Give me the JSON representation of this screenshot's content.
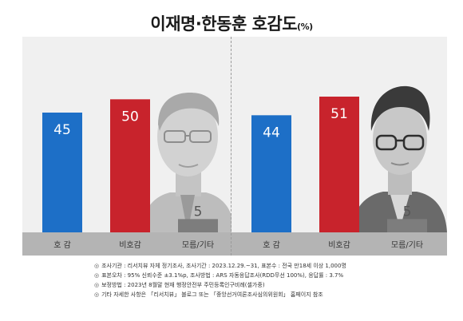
{
  "title": {
    "main": "이재명·한동훈 호감도",
    "unit": "(%)"
  },
  "chart_data": [
    {
      "type": "bar",
      "categories": [
        "호 감",
        "비호감",
        "모름/기타"
      ],
      "values": [
        45,
        50,
        5
      ],
      "colors": [
        "#1d6fc7",
        "#c8232c",
        "#7d7d7d"
      ],
      "ylim": [
        0,
        60
      ]
    },
    {
      "type": "bar",
      "categories": [
        "호 감",
        "비호감",
        "모름/기타"
      ],
      "values": [
        44,
        51,
        5
      ],
      "colors": [
        "#1d6fc7",
        "#c8232c",
        "#7d7d7d"
      ],
      "ylim": [
        0,
        60
      ]
    }
  ],
  "footer": {
    "lines": [
      "조사기관 : 리서치뷰 자체 정기조사, 조사기간 : 2023.12.29.~31, 표본수 : 전국 만18세 이상 1,000명",
      "표본오차 : 95% 신뢰수준 ±3.1%p, 조사방법 : ARS 자동응답조사(RDD무선 100%), 응답률 : 3.7%",
      "보정방법 : 2023년 8월말 현재 행정안전부 주민등록인구비례(셀가중)",
      "기타 자세한 사항은 「리서치뷰」 블로그 또는 「중앙선거여론조사심의위원회」 홈페이지 참조"
    ],
    "bullet": "◎"
  }
}
